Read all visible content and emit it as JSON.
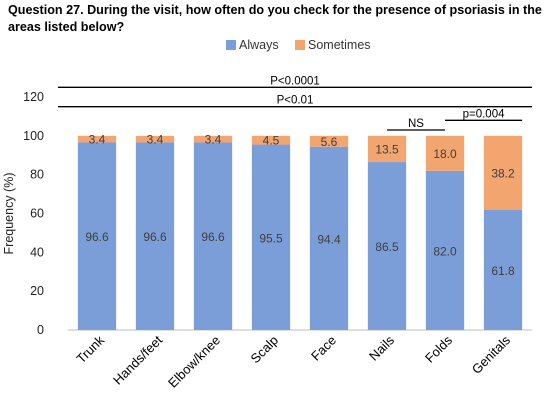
{
  "title": "Question 27. During the visit,  how often do you check for the presence of psoriasis in the areas listed below?",
  "colors": {
    "always": "#7b9ed8",
    "sometimes": "#f2a56f",
    "axis": "#bfbfbf",
    "bracket": "#000000"
  },
  "chart_data": {
    "type": "bar",
    "stacked": true,
    "categories": [
      "Trunk",
      "Hands/feet",
      "Elbow/knee",
      "Scalp",
      "Face",
      "Nails",
      "Folds",
      "Genitals"
    ],
    "series": [
      {
        "name": "Always",
        "values": [
          96.6,
          96.6,
          96.6,
          95.5,
          94.4,
          86.5,
          82.0,
          61.8
        ],
        "labels": [
          "96.6",
          "96.6",
          "96.6",
          "95.5",
          "94.4",
          "86.5",
          "82.0",
          "61.8"
        ]
      },
      {
        "name": "Sometimes",
        "values": [
          3.4,
          3.4,
          3.4,
          4.5,
          5.6,
          13.5,
          18.0,
          38.2
        ],
        "labels": [
          "3.4",
          "3.4",
          "3.4",
          "4.5",
          "5.6",
          "13.5",
          "18.0",
          "38.2"
        ]
      }
    ],
    "ylabel": "Frequency (%)",
    "xlabel": "",
    "ylim": [
      0,
      120
    ],
    "yticks": [
      0,
      20,
      40,
      60,
      80,
      100,
      120
    ],
    "legend": "top-center",
    "grid": false,
    "annotations": [
      {
        "text": "P<0.0001",
        "from": "Trunk",
        "to": "Genitals",
        "level": 125
      },
      {
        "text": "P<0.01",
        "from": "Trunk",
        "to": "Genitals",
        "level": 115
      },
      {
        "text": "NS",
        "from": "Nails",
        "to": "Folds",
        "level": 103
      },
      {
        "text": "p=0.004",
        "from": "Folds",
        "to": "Genitals",
        "level": 108
      }
    ]
  }
}
